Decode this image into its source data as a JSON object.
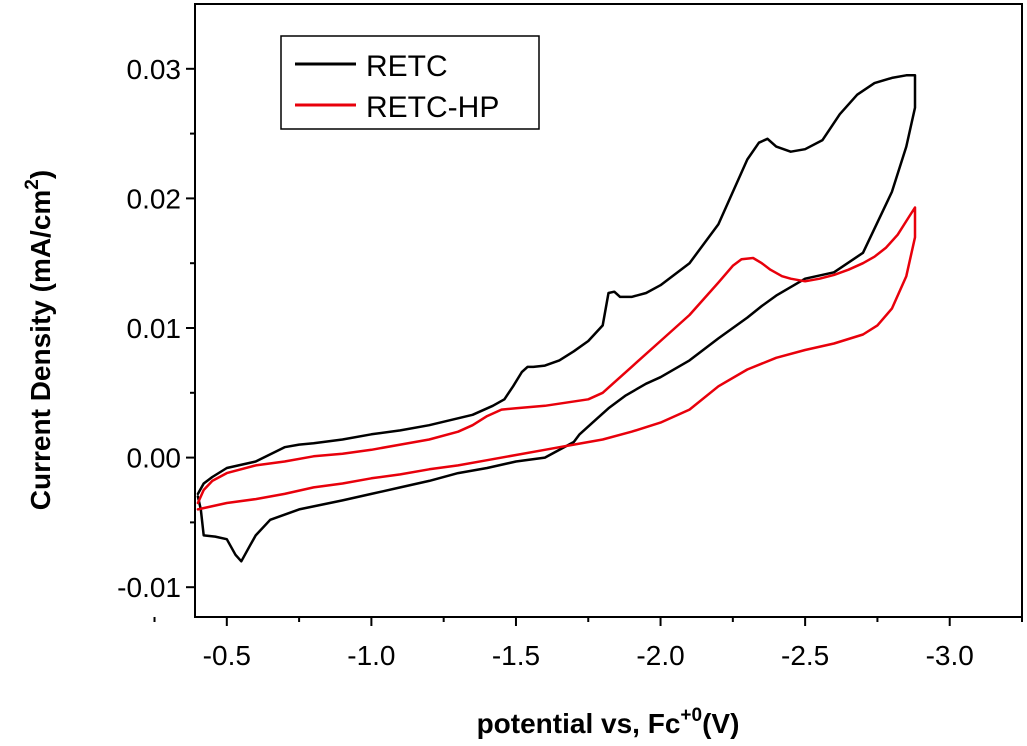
{
  "chart_data": {
    "type": "line",
    "xlabel": "potential vs, Fc",
    "xlabel_sup": "+0",
    "xlabel_unit": "(V)",
    "ylabel": "Current Density (mA/cm",
    "ylabel_sup": "2",
    "ylabel_end": ")",
    "xlim": [
      -0.39,
      -3.25
    ],
    "ylim": [
      -0.0123,
      0.035
    ],
    "x_ticks": [
      -0.5,
      -1.0,
      -1.5,
      -2.0,
      -2.5,
      -3.0
    ],
    "x_tick_labels": [
      "-0.5",
      "-1.0",
      "-1.5",
      "-2.0",
      "-2.5",
      "-3.0"
    ],
    "y_ticks": [
      -0.01,
      0.0,
      0.01,
      0.02,
      0.03
    ],
    "y_tick_labels": [
      "-0.01",
      "0.00",
      "0.01",
      "0.02",
      "0.03"
    ],
    "grid": false,
    "legend_position": "top-left",
    "series": [
      {
        "name": "RETC",
        "color": "#000000",
        "x": [
          -0.4,
          -0.41,
          -0.42,
          -0.46,
          -0.5,
          -0.53,
          -0.55,
          -0.58,
          -0.6,
          -0.65,
          -0.75,
          -0.9,
          -1.0,
          -1.1,
          -1.2,
          -1.3,
          -1.4,
          -1.5,
          -1.6,
          -1.7,
          -1.72,
          -1.78,
          -1.82,
          -1.88,
          -1.95,
          -2.0,
          -2.1,
          -2.2,
          -2.3,
          -2.35,
          -2.4,
          -2.5,
          -2.6,
          -2.7,
          -2.8,
          -2.85,
          -2.88,
          -2.88,
          -2.85,
          -2.8,
          -2.74,
          -2.68,
          -2.62,
          -2.56,
          -2.5,
          -2.45,
          -2.4,
          -2.37,
          -2.34,
          -2.3,
          -2.2,
          -2.1,
          -2.0,
          -1.95,
          -1.9,
          -1.86,
          -1.84,
          -1.82,
          -1.8,
          -1.75,
          -1.7,
          -1.65,
          -1.6,
          -1.56,
          -1.54,
          -1.52,
          -1.49,
          -1.46,
          -1.42,
          -1.35,
          -1.2,
          -1.1,
          -1.0,
          -0.9,
          -0.8,
          -0.75,
          -0.7,
          -0.6,
          -0.5,
          -0.45,
          -0.42,
          -0.4
        ],
        "y": [
          -0.003,
          -0.004,
          -0.006,
          -0.0061,
          -0.0063,
          -0.0075,
          -0.008,
          -0.0068,
          -0.006,
          -0.0048,
          -0.004,
          -0.0033,
          -0.0028,
          -0.0023,
          -0.0018,
          -0.0012,
          -0.0008,
          -0.0003,
          0.0,
          0.0012,
          0.0018,
          0.003,
          0.0038,
          0.0048,
          0.0057,
          0.0062,
          0.0075,
          0.0092,
          0.0108,
          0.0117,
          0.0125,
          0.0138,
          0.0143,
          0.0158,
          0.0205,
          0.024,
          0.027,
          0.0295,
          0.0295,
          0.0293,
          0.0289,
          0.028,
          0.0265,
          0.0245,
          0.0238,
          0.0236,
          0.024,
          0.0246,
          0.0243,
          0.023,
          0.018,
          0.015,
          0.0133,
          0.0127,
          0.0124,
          0.0124,
          0.0128,
          0.0127,
          0.0102,
          0.009,
          0.0082,
          0.0075,
          0.0071,
          0.007,
          0.007,
          0.0066,
          0.0055,
          0.0045,
          0.004,
          0.0033,
          0.0025,
          0.0021,
          0.0018,
          0.0014,
          0.0011,
          0.001,
          0.0008,
          -0.0003,
          -0.0008,
          -0.0015,
          -0.002,
          -0.0028
        ]
      },
      {
        "name": "RETC-HP",
        "color": "#e8000b",
        "x": [
          -0.4,
          -0.5,
          -0.6,
          -0.7,
          -0.8,
          -0.9,
          -1.0,
          -1.1,
          -1.2,
          -1.3,
          -1.4,
          -1.5,
          -1.6,
          -1.7,
          -1.8,
          -1.9,
          -2.0,
          -2.1,
          -2.2,
          -2.3,
          -2.4,
          -2.5,
          -2.6,
          -2.7,
          -2.75,
          -2.8,
          -2.85,
          -2.88,
          -2.88,
          -2.86,
          -2.82,
          -2.78,
          -2.74,
          -2.7,
          -2.65,
          -2.6,
          -2.55,
          -2.5,
          -2.45,
          -2.42,
          -2.38,
          -2.35,
          -2.32,
          -2.28,
          -2.25,
          -2.2,
          -2.1,
          -2.0,
          -1.9,
          -1.85,
          -1.8,
          -1.75,
          -1.6,
          -1.5,
          -1.45,
          -1.4,
          -1.35,
          -1.3,
          -1.2,
          -1.1,
          -1.0,
          -0.9,
          -0.8,
          -0.7,
          -0.6,
          -0.5,
          -0.45,
          -0.42,
          -0.4
        ],
        "y": [
          -0.004,
          -0.0035,
          -0.0032,
          -0.0028,
          -0.0023,
          -0.002,
          -0.0016,
          -0.0013,
          -0.0009,
          -0.0006,
          -0.0002,
          0.0002,
          0.0006,
          0.001,
          0.0014,
          0.002,
          0.0027,
          0.0037,
          0.0055,
          0.0068,
          0.0077,
          0.0083,
          0.0088,
          0.0095,
          0.0102,
          0.0115,
          0.014,
          0.017,
          0.0193,
          0.0186,
          0.0172,
          0.0162,
          0.0155,
          0.015,
          0.0145,
          0.0141,
          0.0138,
          0.0136,
          0.0138,
          0.014,
          0.0145,
          0.015,
          0.0154,
          0.0153,
          0.0148,
          0.0135,
          0.011,
          0.009,
          0.007,
          0.006,
          0.005,
          0.0045,
          0.004,
          0.0038,
          0.0037,
          0.0032,
          0.0025,
          0.002,
          0.0014,
          0.001,
          0.0006,
          0.0003,
          0.0001,
          -0.0003,
          -0.0006,
          -0.0012,
          -0.0018,
          -0.0025,
          -0.0035
        ]
      }
    ]
  }
}
